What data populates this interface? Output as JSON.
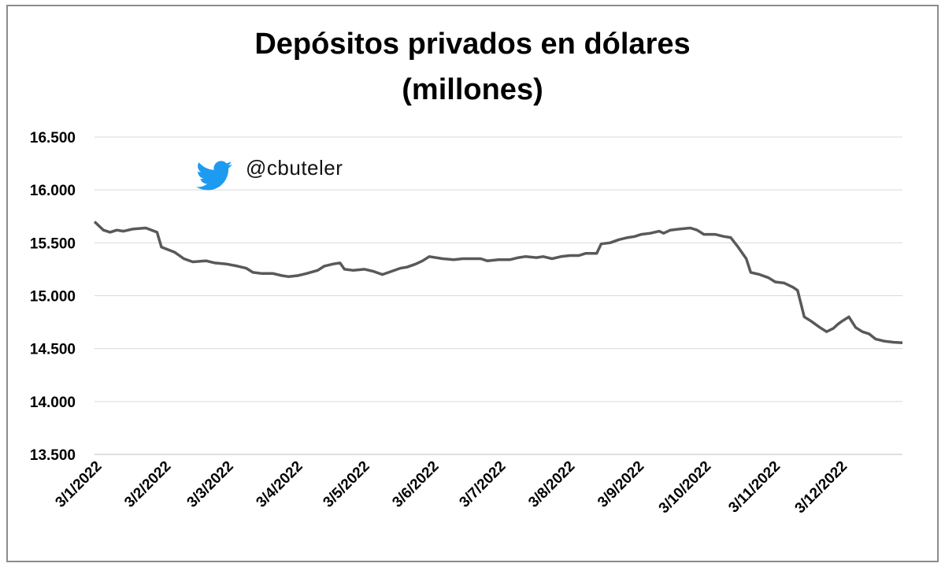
{
  "title_line1": "Depósitos privados en dólares",
  "title_line2": "(millones)",
  "watermark": {
    "icon": "twitter-bird-icon",
    "handle": "@cbuteler",
    "icon_color": "#1d9bf0"
  },
  "colors": {
    "line": "#595959",
    "grid": "#d9d9d9",
    "frame": "#8c8c8c"
  },
  "chart_data": {
    "type": "line",
    "title": "Depósitos privados en dólares (millones)",
    "xlabel": "",
    "ylabel": "",
    "ylim": [
      13500,
      16500
    ],
    "yticks": [
      13500,
      14000,
      14500,
      15000,
      15500,
      16000,
      16500
    ],
    "ytick_labels": [
      "13.500",
      "14.000",
      "14.500",
      "15.000",
      "15.500",
      "16.000",
      "16.500"
    ],
    "xtick_labels": [
      "3/1/2022",
      "3/2/2022",
      "3/3/2022",
      "3/4/2022",
      "3/5/2022",
      "3/6/2022",
      "3/7/2022",
      "3/8/2022",
      "3/9/2022",
      "3/10/2022",
      "3/11/2022",
      "3/12/2022"
    ],
    "grid": true,
    "legend": "none",
    "series": [
      {
        "points": [
          [
            "2022-01-03",
            15700
          ],
          [
            "2022-01-07",
            15620
          ],
          [
            "2022-01-10",
            15600
          ],
          [
            "2022-01-13",
            15620
          ],
          [
            "2022-01-16",
            15610
          ],
          [
            "2022-01-20",
            15630
          ],
          [
            "2022-01-26",
            15640
          ],
          [
            "2022-01-31",
            15600
          ],
          [
            "2022-02-02",
            15460
          ],
          [
            "2022-02-08",
            15410
          ],
          [
            "2022-02-12",
            15350
          ],
          [
            "2022-02-16",
            15320
          ],
          [
            "2022-02-22",
            15330
          ],
          [
            "2022-02-26",
            15310
          ],
          [
            "2022-03-03",
            15300
          ],
          [
            "2022-03-08",
            15280
          ],
          [
            "2022-03-12",
            15260
          ],
          [
            "2022-03-15",
            15220
          ],
          [
            "2022-03-19",
            15210
          ],
          [
            "2022-03-24",
            15210
          ],
          [
            "2022-03-28",
            15190
          ],
          [
            "2022-03-31",
            15180
          ],
          [
            "2022-04-04",
            15190
          ],
          [
            "2022-04-08",
            15210
          ],
          [
            "2022-04-13",
            15240
          ],
          [
            "2022-04-16",
            15280
          ],
          [
            "2022-04-20",
            15300
          ],
          [
            "2022-04-23",
            15310
          ],
          [
            "2022-04-25",
            15250
          ],
          [
            "2022-04-29",
            15240
          ],
          [
            "2022-05-04",
            15250
          ],
          [
            "2022-05-08",
            15230
          ],
          [
            "2022-05-12",
            15200
          ],
          [
            "2022-05-16",
            15230
          ],
          [
            "2022-05-20",
            15260
          ],
          [
            "2022-05-23",
            15270
          ],
          [
            "2022-05-27",
            15300
          ],
          [
            "2022-05-30",
            15330
          ],
          [
            "2022-06-02",
            15370
          ],
          [
            "2022-06-08",
            15350
          ],
          [
            "2022-06-13",
            15340
          ],
          [
            "2022-06-17",
            15350
          ],
          [
            "2022-06-22",
            15350
          ],
          [
            "2022-06-25",
            15350
          ],
          [
            "2022-06-28",
            15330
          ],
          [
            "2022-07-03",
            15340
          ],
          [
            "2022-07-08",
            15340
          ],
          [
            "2022-07-12",
            15360
          ],
          [
            "2022-07-15",
            15370
          ],
          [
            "2022-07-20",
            15360
          ],
          [
            "2022-07-23",
            15370
          ],
          [
            "2022-07-27",
            15350
          ],
          [
            "2022-07-31",
            15370
          ],
          [
            "2022-08-04",
            15380
          ],
          [
            "2022-08-08",
            15380
          ],
          [
            "2022-08-11",
            15400
          ],
          [
            "2022-08-16",
            15400
          ],
          [
            "2022-08-18",
            15490
          ],
          [
            "2022-08-22",
            15500
          ],
          [
            "2022-08-26",
            15530
          ],
          [
            "2022-08-30",
            15550
          ],
          [
            "2022-09-02",
            15560
          ],
          [
            "2022-09-05",
            15580
          ],
          [
            "2022-09-09",
            15590
          ],
          [
            "2022-09-13",
            15610
          ],
          [
            "2022-09-15",
            15590
          ],
          [
            "2022-09-18",
            15620
          ],
          [
            "2022-09-22",
            15630
          ],
          [
            "2022-09-27",
            15640
          ],
          [
            "2022-09-30",
            15620
          ],
          [
            "2022-10-03",
            15580
          ],
          [
            "2022-10-08",
            15580
          ],
          [
            "2022-10-12",
            15560
          ],
          [
            "2022-10-15",
            15550
          ],
          [
            "2022-10-18",
            15470
          ],
          [
            "2022-10-22",
            15350
          ],
          [
            "2022-10-24",
            15220
          ],
          [
            "2022-10-28",
            15200
          ],
          [
            "2022-11-01",
            15170
          ],
          [
            "2022-11-04",
            15130
          ],
          [
            "2022-11-08",
            15120
          ],
          [
            "2022-11-12",
            15080
          ],
          [
            "2022-11-14",
            15050
          ],
          [
            "2022-11-17",
            14800
          ],
          [
            "2022-11-20",
            14760
          ],
          [
            "2022-11-24",
            14700
          ],
          [
            "2022-11-27",
            14660
          ],
          [
            "2022-11-30",
            14690
          ],
          [
            "2022-12-02",
            14730
          ],
          [
            "2022-12-04",
            14760
          ],
          [
            "2022-12-07",
            14800
          ],
          [
            "2022-12-10",
            14700
          ],
          [
            "2022-12-13",
            14660
          ],
          [
            "2022-12-16",
            14640
          ],
          [
            "2022-12-19",
            14590
          ],
          [
            "2022-12-23",
            14570
          ],
          [
            "2022-12-27",
            14560
          ],
          [
            "2022-12-31",
            14555
          ]
        ]
      }
    ]
  }
}
